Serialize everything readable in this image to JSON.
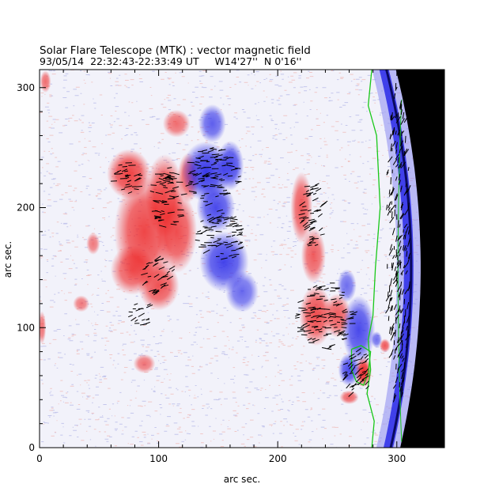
{
  "chart_data": {
    "type": "heatmap",
    "title": "Solar Flare Telescope (MTK) : vector magnetic field",
    "subtitle": "93/05/14  22:32:43-22:33:49 UT     W14'27''  N 0'16''",
    "xlabel": "arc sec.",
    "ylabel": "arc sec.",
    "xlim": [
      0,
      340
    ],
    "ylim": [
      0,
      315
    ],
    "xticks": [
      0,
      100,
      200,
      300
    ],
    "yticks": [
      0,
      100,
      200,
      300
    ],
    "colors": {
      "positive": "#ee2020",
      "negative": "#2a2ae8",
      "background": "#f2f2fa",
      "neutral_line": "#18c818",
      "off_limb": "#000000",
      "vectors": "#000000"
    },
    "positive_regions": [
      {
        "x": 75,
        "y": 228,
        "rx": 16,
        "ry": 18,
        "v": 0.8
      },
      {
        "x": 88,
        "y": 180,
        "rx": 22,
        "ry": 40,
        "v": 0.75
      },
      {
        "x": 105,
        "y": 210,
        "rx": 14,
        "ry": 30,
        "v": 0.7
      },
      {
        "x": 115,
        "y": 180,
        "rx": 15,
        "ry": 30,
        "v": 0.7
      },
      {
        "x": 100,
        "y": 135,
        "rx": 15,
        "ry": 18,
        "v": 0.65
      },
      {
        "x": 78,
        "y": 148,
        "rx": 16,
        "ry": 18,
        "v": 0.6
      },
      {
        "x": 115,
        "y": 270,
        "rx": 10,
        "ry": 10,
        "v": 0.4
      },
      {
        "x": 125,
        "y": 225,
        "rx": 8,
        "ry": 18,
        "v": 0.55
      },
      {
        "x": 35,
        "y": 120,
        "rx": 6,
        "ry": 6,
        "v": 0.3
      },
      {
        "x": 45,
        "y": 170,
        "rx": 5,
        "ry": 8,
        "v": 0.3
      },
      {
        "x": 88,
        "y": 70,
        "rx": 8,
        "ry": 7,
        "v": 0.35
      },
      {
        "x": 220,
        "y": 200,
        "rx": 8,
        "ry": 26,
        "v": 0.6
      },
      {
        "x": 230,
        "y": 160,
        "rx": 9,
        "ry": 20,
        "v": 0.55
      },
      {
        "x": 232,
        "y": 110,
        "rx": 12,
        "ry": 22,
        "v": 0.7
      },
      {
        "x": 250,
        "y": 110,
        "rx": 10,
        "ry": 16,
        "v": 0.55
      },
      {
        "x": 272,
        "y": 63,
        "rx": 6,
        "ry": 11,
        "v": 1.0
      },
      {
        "x": 260,
        "y": 42,
        "rx": 7,
        "ry": 5,
        "v": 0.5
      },
      {
        "x": 290,
        "y": 85,
        "rx": 4,
        "ry": 5,
        "v": 0.6
      },
      {
        "x": 5,
        "y": 305,
        "rx": 4,
        "ry": 8,
        "v": 0.4
      },
      {
        "x": 2,
        "y": 100,
        "rx": 3,
        "ry": 12,
        "v": 0.35
      }
    ],
    "negative_regions": [
      {
        "x": 140,
        "y": 230,
        "rx": 18,
        "ry": 22,
        "v": 0.95
      },
      {
        "x": 160,
        "y": 235,
        "rx": 10,
        "ry": 18,
        "v": 0.85
      },
      {
        "x": 148,
        "y": 200,
        "rx": 14,
        "ry": 18,
        "v": 0.8
      },
      {
        "x": 155,
        "y": 155,
        "rx": 18,
        "ry": 22,
        "v": 0.85
      },
      {
        "x": 145,
        "y": 270,
        "rx": 10,
        "ry": 14,
        "v": 0.6
      },
      {
        "x": 170,
        "y": 130,
        "rx": 12,
        "ry": 15,
        "v": 0.5
      },
      {
        "x": 268,
        "y": 98,
        "rx": 12,
        "ry": 25,
        "v": 0.8
      },
      {
        "x": 260,
        "y": 65,
        "rx": 8,
        "ry": 12,
        "v": 0.8
      },
      {
        "x": 258,
        "y": 135,
        "rx": 7,
        "ry": 12,
        "v": 0.45
      },
      {
        "x": 283,
        "y": 90,
        "rx": 4,
        "ry": 6,
        "v": 0.45
      }
    ],
    "neutral_line": [
      [
        279,
        315
      ],
      [
        276,
        285
      ],
      [
        283,
        260
      ],
      [
        286,
        200
      ],
      [
        282,
        150
      ],
      [
        280,
        110
      ],
      [
        276,
        90
      ],
      [
        278,
        65
      ],
      [
        275,
        45
      ],
      [
        281,
        22
      ],
      [
        279,
        0
      ]
    ],
    "neutral_loop": [
      [
        262,
        82
      ],
      [
        270,
        85
      ],
      [
        278,
        80
      ],
      [
        276,
        62
      ],
      [
        272,
        52
      ],
      [
        266,
        55
      ],
      [
        262,
        65
      ],
      [
        262,
        82
      ]
    ],
    "vector_clusters": [
      {
        "x": 74,
        "y": 224,
        "rx": 12,
        "ry": 14,
        "angle": 10
      },
      {
        "x": 108,
        "y": 208,
        "rx": 14,
        "ry": 26,
        "angle": 0
      },
      {
        "x": 146,
        "y": 226,
        "rx": 22,
        "ry": 24,
        "angle": 5
      },
      {
        "x": 152,
        "y": 176,
        "rx": 20,
        "ry": 22,
        "angle": 12
      },
      {
        "x": 100,
        "y": 143,
        "rx": 14,
        "ry": 16,
        "angle": 30
      },
      {
        "x": 86,
        "y": 112,
        "rx": 10,
        "ry": 10,
        "angle": 15
      },
      {
        "x": 230,
        "y": 195,
        "rx": 10,
        "ry": 30,
        "angle": 20
      },
      {
        "x": 240,
        "y": 110,
        "rx": 24,
        "ry": 28,
        "angle": 10
      },
      {
        "x": 266,
        "y": 62,
        "rx": 12,
        "ry": 20,
        "angle": 35
      },
      {
        "x": 301,
        "y": 170,
        "rx": 10,
        "ry": 140,
        "angle": 72
      }
    ]
  }
}
